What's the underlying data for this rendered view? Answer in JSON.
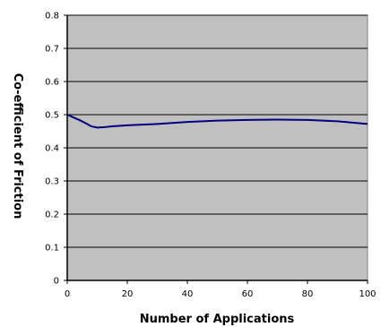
{
  "chart_data": {
    "type": "line",
    "title": "",
    "xlabel": "Number of Applications",
    "ylabel": "Co-efficient of Friction",
    "xlim": [
      0,
      100
    ],
    "ylim": [
      0,
      0.8
    ],
    "x_ticks": [
      "0",
      "20",
      "40",
      "60",
      "80",
      "100"
    ],
    "y_ticks": [
      "0",
      "0.1",
      "0.2",
      "0.3",
      "0.4",
      "0.5",
      "0.6",
      "0.7",
      "0.8"
    ],
    "grid": "horizontal",
    "legend": "none",
    "series": [
      {
        "color": "#000080",
        "x": [
          0,
          2,
          4,
          6,
          8,
          10,
          12,
          15,
          20,
          25,
          30,
          40,
          50,
          60,
          70,
          80,
          90,
          95,
          100
        ],
        "y": [
          0.5,
          0.492,
          0.484,
          0.475,
          0.465,
          0.461,
          0.462,
          0.465,
          0.468,
          0.47,
          0.472,
          0.478,
          0.482,
          0.484,
          0.485,
          0.484,
          0.48,
          0.476,
          0.472
        ]
      }
    ],
    "plot_background": "#c0c0c0",
    "gridline_color": "#000000"
  }
}
